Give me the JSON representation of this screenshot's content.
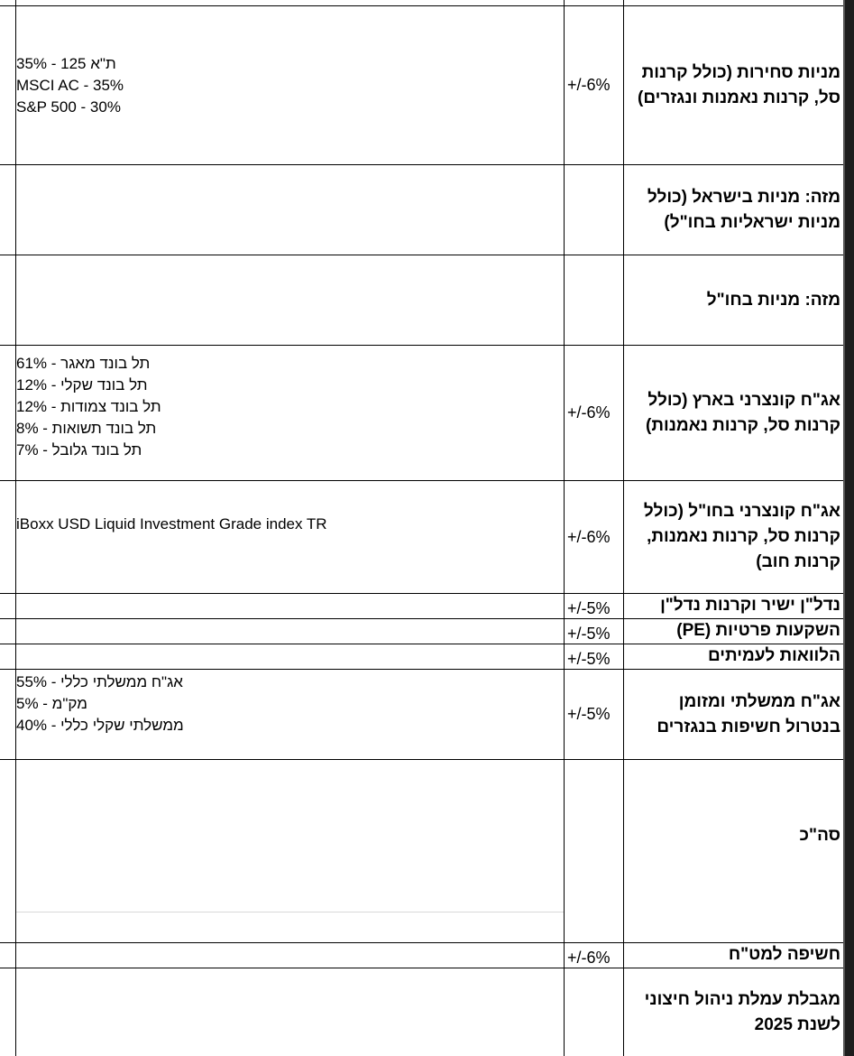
{
  "rows": [
    {
      "label": "מניות סחירות (כולל קרנות סל, קרנות נאמנות ונגזרים)",
      "range": "+/-6%",
      "benchmark": [
        "ת\"א 125 - 35%",
        "MSCI AC - 35%",
        "S&P 500 - 30%"
      ]
    },
    {
      "label": "מזה: מניות בישראל (כולל מניות ישראליות בחו\"ל)",
      "range": "",
      "benchmark": []
    },
    {
      "label": "מזה: מניות בחו\"ל",
      "range": "",
      "benchmark": []
    },
    {
      "label": "אג\"ח קונצרני בארץ (כולל קרנות סל, קרנות נאמנות)",
      "range": "+/-6%",
      "benchmark": [
        "תל בונד מאגר - 61%",
        "תל בונד שקלי - 12%",
        "תל בונד צמודות - 12%",
        "תל בונד תשואות - 8%",
        "תל בונד גלובל - 7%"
      ]
    },
    {
      "label": "אג\"ח קונצרני בחו\"ל (כולל קרנות סל, קרנות נאמנות, קרנות חוב)",
      "range": "+/-6%",
      "benchmark": [
        "iBoxx USD Liquid Investment Grade index TR"
      ]
    },
    {
      "label": "נדל\"ן ישיר וקרנות נדל\"ן",
      "range": "+/-5%",
      "benchmark": []
    },
    {
      "label": "השקעות פרטיות (PE)",
      "range": "+/-5%",
      "benchmark": []
    },
    {
      "label": "הלוואות לעמיתים",
      "range": "+/-5%",
      "benchmark": []
    },
    {
      "label": "אג\"ח ממשלתי ומזומן בנטרול חשיפות בנגזרים",
      "range": "+/-5%",
      "benchmark": [
        "אג\"ח ממשלתי כללי - 55%",
        "מק\"מ - 5%",
        "ממשלתי שקלי כללי - 40%"
      ]
    },
    {
      "label": "סה\"כ",
      "range": "",
      "benchmark": []
    },
    {
      "label": "חשיפה למט\"ח",
      "range": "+/-6%",
      "benchmark": []
    },
    {
      "label": "מגבלת עמלת ניהול חיצוני לשנת 2025",
      "range": "",
      "benchmark": []
    }
  ]
}
